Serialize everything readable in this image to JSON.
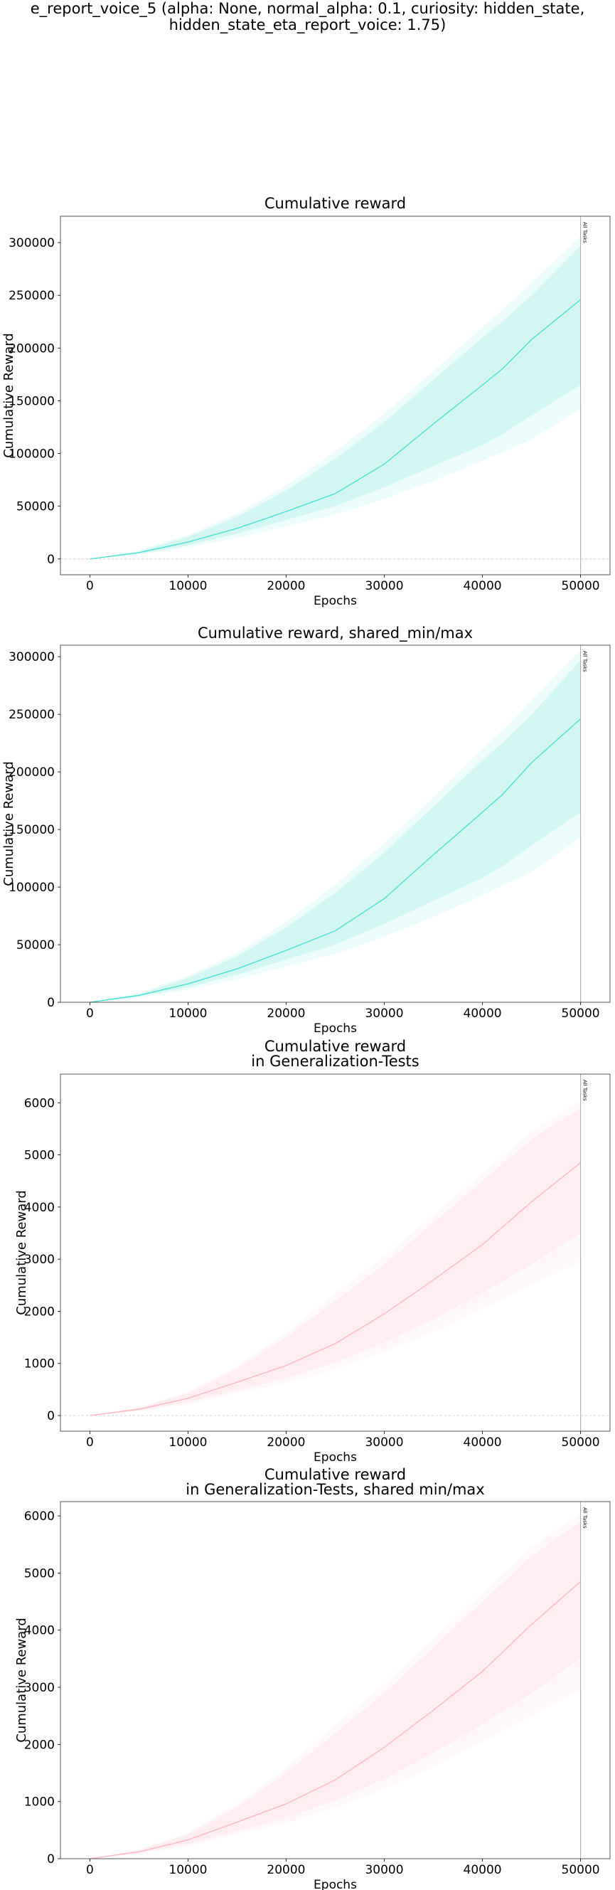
{
  "figure": {
    "title_line1": "e_report_voice_5 (alpha: None, normal_alpha: 0.1, curiosity: hidden_state,",
    "title_line2": "hidden_state_eta_report_voice: 1.75)"
  },
  "colors": {
    "train": "#40e0d0",
    "test": "#ffb6c1",
    "grid_h": "#cccccc"
  },
  "chart_data": [
    {
      "type": "area",
      "title": [
        "Cumulative reward"
      ],
      "xlabel": "Epochs",
      "ylabel": "Cumulative Reward",
      "xlim": [
        -3000,
        53000
      ],
      "ylim": [
        -15000,
        325000
      ],
      "xticks": [
        0,
        10000,
        20000,
        30000,
        40000,
        50000
      ],
      "yticks": [
        0,
        50000,
        100000,
        150000,
        200000,
        250000,
        300000
      ],
      "zero_line": true,
      "vline": {
        "x": 50000,
        "label": "All Tasks"
      },
      "series": [
        {
          "color": "train",
          "x": [
            0,
            5000,
            10000,
            15000,
            20000,
            25000,
            30000,
            35000,
            40000,
            42000,
            45000,
            50000
          ],
          "mean": [
            0,
            6000,
            16000,
            29000,
            45000,
            62000,
            90000,
            128000,
            165000,
            180000,
            208000,
            246000
          ],
          "inner_min": [
            0,
            5000,
            13000,
            24000,
            37000,
            50000,
            68000,
            88000,
            108000,
            118000,
            136000,
            165000
          ],
          "inner_max": [
            0,
            7000,
            21000,
            40000,
            65000,
            95000,
            130000,
            170000,
            210000,
            225000,
            250000,
            297000
          ],
          "outer_min": [
            0,
            4000,
            11000,
            20000,
            31000,
            42000,
            57000,
            74000,
            93000,
            101000,
            113000,
            143000
          ],
          "outer_max": [
            0,
            8000,
            23000,
            43000,
            70000,
            102000,
            138000,
            178000,
            220000,
            236000,
            262000,
            306000
          ]
        }
      ]
    },
    {
      "type": "area",
      "title": [
        "Cumulative reward, shared_min/max"
      ],
      "xlabel": "Epochs",
      "ylabel": "Cumulative Reward",
      "xlim": [
        -3000,
        53000
      ],
      "ylim": [
        0,
        310000
      ],
      "xticks": [
        0,
        10000,
        20000,
        30000,
        40000,
        50000
      ],
      "yticks": [
        0,
        50000,
        100000,
        150000,
        200000,
        250000,
        300000
      ],
      "zero_line": false,
      "vline": {
        "x": 50000,
        "label": "All Tasks"
      },
      "series": [
        {
          "color": "train",
          "x": [
            0,
            5000,
            10000,
            15000,
            20000,
            25000,
            30000,
            35000,
            40000,
            42000,
            45000,
            50000
          ],
          "mean": [
            0,
            6000,
            16000,
            29000,
            45000,
            62000,
            90000,
            128000,
            165000,
            180000,
            208000,
            246000
          ],
          "inner_min": [
            0,
            5000,
            13000,
            24000,
            37000,
            50000,
            68000,
            88000,
            108000,
            118000,
            136000,
            165000
          ],
          "inner_max": [
            0,
            7000,
            21000,
            40000,
            65000,
            95000,
            130000,
            170000,
            210000,
            225000,
            250000,
            297000
          ],
          "outer_min": [
            0,
            4000,
            11000,
            20000,
            31000,
            42000,
            57000,
            74000,
            93000,
            101000,
            113000,
            143000
          ],
          "outer_max": [
            0,
            8000,
            23000,
            43000,
            70000,
            102000,
            138000,
            178000,
            220000,
            236000,
            262000,
            306000
          ]
        }
      ]
    },
    {
      "type": "area",
      "title": [
        "Cumulative reward",
        "in Generalization-Tests"
      ],
      "xlabel": "Epochs",
      "ylabel": "Cumulative Reward",
      "xlim": [
        -3000,
        53000
      ],
      "ylim": [
        -300,
        6550
      ],
      "xticks": [
        0,
        10000,
        20000,
        30000,
        40000,
        50000
      ],
      "yticks": [
        0,
        1000,
        2000,
        3000,
        4000,
        5000,
        6000
      ],
      "zero_line": true,
      "vline": {
        "x": 50000,
        "label": "All Tasks"
      },
      "series": [
        {
          "color": "test",
          "x": [
            0,
            5000,
            10000,
            15000,
            20000,
            25000,
            30000,
            35000,
            40000,
            45000,
            50000
          ],
          "mean": [
            0,
            120,
            330,
            640,
            960,
            1380,
            1950,
            2600,
            3280,
            4100,
            4850
          ],
          "inner_min": [
            0,
            100,
            260,
            480,
            720,
            1020,
            1400,
            1850,
            2350,
            2900,
            3500
          ],
          "inner_max": [
            0,
            150,
            430,
            900,
            1500,
            2200,
            2900,
            3700,
            4500,
            5300,
            5900
          ],
          "outer_min": [
            0,
            80,
            220,
            430,
            620,
            890,
            1220,
            1600,
            2050,
            2500,
            2950
          ],
          "outer_max": [
            0,
            160,
            460,
            960,
            1600,
            2350,
            3050,
            3850,
            4650,
            5450,
            6050
          ]
        }
      ]
    },
    {
      "type": "area",
      "title": [
        "Cumulative reward",
        "in Generalization-Tests, shared min/max"
      ],
      "xlabel": "Epochs",
      "ylabel": "Cumulative Reward",
      "xlim": [
        -3000,
        53000
      ],
      "ylim": [
        0,
        6250
      ],
      "xticks": [
        0,
        10000,
        20000,
        30000,
        40000,
        50000
      ],
      "yticks": [
        0,
        1000,
        2000,
        3000,
        4000,
        5000,
        6000
      ],
      "zero_line": false,
      "vline": {
        "x": 50000,
        "label": "All Tasks"
      },
      "series": [
        {
          "color": "test",
          "x": [
            0,
            5000,
            10000,
            15000,
            20000,
            25000,
            30000,
            35000,
            40000,
            45000,
            50000
          ],
          "mean": [
            0,
            120,
            330,
            640,
            960,
            1380,
            1950,
            2600,
            3280,
            4100,
            4850
          ],
          "inner_min": [
            0,
            100,
            260,
            480,
            720,
            1020,
            1400,
            1850,
            2350,
            2900,
            3500
          ],
          "inner_max": [
            0,
            150,
            430,
            900,
            1500,
            2200,
            2900,
            3700,
            4500,
            5300,
            5900
          ],
          "outer_min": [
            0,
            80,
            220,
            430,
            620,
            890,
            1220,
            1600,
            2050,
            2500,
            2950
          ],
          "outer_max": [
            0,
            160,
            460,
            960,
            1600,
            2350,
            3050,
            3850,
            4650,
            5450,
            6050
          ]
        }
      ]
    }
  ]
}
